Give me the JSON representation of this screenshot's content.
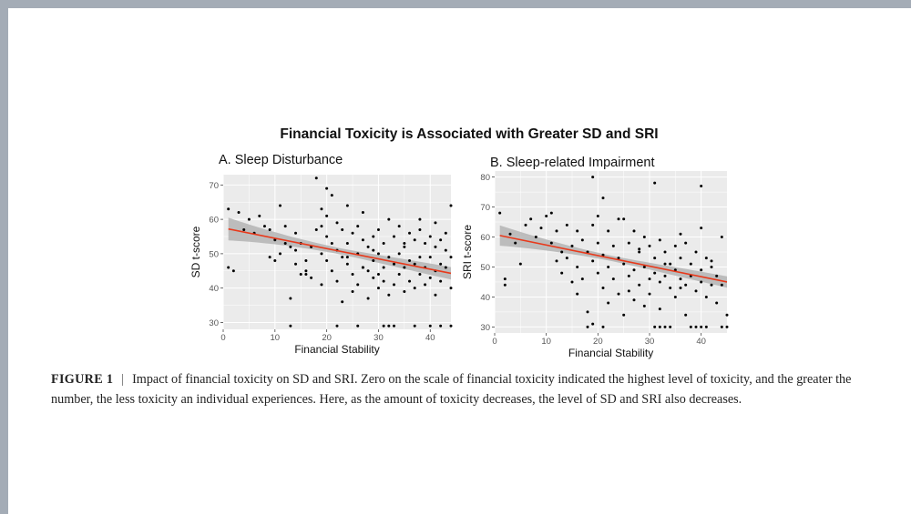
{
  "figure_title": "Financial Toxicity is Associated with Greater SD and SRI",
  "caption": {
    "label": "FIGURE 1",
    "separator": "|",
    "text": "Impact of financial toxicity on SD and SRI. Zero on the scale of financial toxicity indicated the highest level of toxicity, and the greater the number, the less toxicity an individual experiences. Here, as the amount of toxicity decreases, the level of SD and SRI also decreases."
  },
  "colors": {
    "panel_bg": "#ebebeb",
    "grid": "#ffffff",
    "point": "#000000",
    "fit_line": "#e8391b",
    "ci_band": "#b4b4b4",
    "frame": "#a4acb6"
  },
  "chart_data": [
    {
      "type": "scatter",
      "title": "A. Sleep Disturbance",
      "xlabel": "Financial Stability",
      "ylabel": "SD t-score",
      "xlim": [
        0,
        44
      ],
      "ylim": [
        28,
        73
      ],
      "xticks": [
        0,
        10,
        20,
        30,
        40
      ],
      "yticks": [
        30,
        40,
        50,
        60,
        70
      ],
      "grid": true,
      "fit": {
        "x": [
          1,
          44
        ],
        "y": [
          57.2,
          44.3
        ],
        "ci_halfwidth_ends": [
          3.3,
          1.8
        ],
        "ci_halfwidth_mid": 0.9
      },
      "points": [
        [
          1,
          46
        ],
        [
          1,
          63
        ],
        [
          2,
          45
        ],
        [
          3,
          62
        ],
        [
          4,
          57
        ],
        [
          5,
          60
        ],
        [
          6,
          56
        ],
        [
          7,
          61
        ],
        [
          8,
          58
        ],
        [
          9,
          57
        ],
        [
          9,
          49
        ],
        [
          10,
          54
        ],
        [
          10,
          48
        ],
        [
          11,
          50
        ],
        [
          11,
          64
        ],
        [
          12,
          53
        ],
        [
          12,
          58
        ],
        [
          13,
          52
        ],
        [
          13,
          37
        ],
        [
          13,
          29
        ],
        [
          14,
          47
        ],
        [
          14,
          51
        ],
        [
          14,
          56
        ],
        [
          15,
          53
        ],
        [
          15,
          44
        ],
        [
          16,
          45
        ],
        [
          16,
          48
        ],
        [
          17,
          52
        ],
        [
          17,
          43
        ],
        [
          18,
          57
        ],
        [
          18,
          72
        ],
        [
          19,
          58
        ],
        [
          19,
          63
        ],
        [
          19,
          50
        ],
        [
          20,
          55
        ],
        [
          20,
          61
        ],
        [
          20,
          48
        ],
        [
          21,
          67
        ],
        [
          21,
          53
        ],
        [
          21,
          45
        ],
        [
          22,
          59
        ],
        [
          22,
          51
        ],
        [
          22,
          42
        ],
        [
          23,
          57
        ],
        [
          23,
          49
        ],
        [
          23,
          36
        ],
        [
          24,
          64
        ],
        [
          24,
          53
        ],
        [
          24,
          47
        ],
        [
          25,
          56
        ],
        [
          25,
          44
        ],
        [
          25,
          39
        ],
        [
          26,
          58
        ],
        [
          26,
          50
        ],
        [
          26,
          41
        ],
        [
          27,
          62
        ],
        [
          27,
          54
        ],
        [
          27,
          46
        ],
        [
          28,
          52
        ],
        [
          28,
          45
        ],
        [
          28,
          37
        ],
        [
          29,
          55
        ],
        [
          29,
          48
        ],
        [
          29,
          43
        ],
        [
          30,
          57
        ],
        [
          30,
          50
        ],
        [
          30,
          40
        ],
        [
          31,
          53
        ],
        [
          31,
          46
        ],
        [
          31,
          42
        ],
        [
          32,
          60
        ],
        [
          32,
          49
        ],
        [
          32,
          38
        ],
        [
          33,
          55
        ],
        [
          33,
          47
        ],
        [
          33,
          41
        ],
        [
          34,
          58
        ],
        [
          34,
          50
        ],
        [
          34,
          44
        ],
        [
          35,
          52
        ],
        [
          35,
          46
        ],
        [
          35,
          39
        ],
        [
          36,
          56
        ],
        [
          36,
          48
        ],
        [
          36,
          42
        ],
        [
          37,
          54
        ],
        [
          37,
          47
        ],
        [
          37,
          40
        ],
        [
          38,
          57
        ],
        [
          38,
          49
        ],
        [
          38,
          44
        ],
        [
          39,
          53
        ],
        [
          39,
          46
        ],
        [
          39,
          41
        ],
        [
          40,
          55
        ],
        [
          40,
          49
        ],
        [
          40,
          43
        ],
        [
          41,
          52
        ],
        [
          41,
          45
        ],
        [
          41,
          38
        ],
        [
          42,
          54
        ],
        [
          42,
          47
        ],
        [
          42,
          42
        ],
        [
          43,
          51
        ],
        [
          43,
          46
        ],
        [
          44,
          64
        ],
        [
          44,
          49
        ],
        [
          44,
          40
        ],
        [
          22,
          29
        ],
        [
          26,
          29
        ],
        [
          31,
          29
        ],
        [
          32,
          29
        ],
        [
          33,
          29
        ],
        [
          37,
          29
        ],
        [
          40,
          29
        ],
        [
          42,
          29
        ],
        [
          44,
          29
        ],
        [
          16,
          44
        ],
        [
          19,
          41
        ],
        [
          24,
          49
        ],
        [
          29,
          51
        ],
        [
          35,
          53
        ],
        [
          38,
          60
        ],
        [
          41,
          59
        ],
        [
          43,
          56
        ],
        [
          20,
          69
        ],
        [
          27,
          46
        ],
        [
          30,
          44
        ]
      ]
    },
    {
      "type": "scatter",
      "title": "B. Sleep-related Impairment",
      "xlabel": "Financial Stability",
      "ylabel": "SRI t-score",
      "xlim": [
        0,
        45
      ],
      "ylim": [
        28,
        82
      ],
      "xticks": [
        0,
        10,
        20,
        30,
        40
      ],
      "yticks": [
        30,
        40,
        50,
        60,
        70,
        80
      ],
      "grid": true,
      "fit": {
        "x": [
          1,
          45
        ],
        "y": [
          60.5,
          45.0
        ],
        "ci_halfwidth_ends": [
          3.4,
          1.9
        ],
        "ci_halfwidth_mid": 0.9
      },
      "points": [
        [
          1,
          68
        ],
        [
          2,
          46
        ],
        [
          2,
          44
        ],
        [
          3,
          61
        ],
        [
          4,
          58
        ],
        [
          5,
          51
        ],
        [
          6,
          64
        ],
        [
          7,
          66
        ],
        [
          8,
          60
        ],
        [
          9,
          63
        ],
        [
          10,
          67
        ],
        [
          11,
          58
        ],
        [
          11,
          68
        ],
        [
          12,
          62
        ],
        [
          13,
          55
        ],
        [
          13,
          48
        ],
        [
          14,
          64
        ],
        [
          14,
          53
        ],
        [
          15,
          57
        ],
        [
          15,
          45
        ],
        [
          16,
          50
        ],
        [
          16,
          41
        ],
        [
          17,
          59
        ],
        [
          17,
          46
        ],
        [
          18,
          55
        ],
        [
          18,
          35
        ],
        [
          19,
          64
        ],
        [
          19,
          52
        ],
        [
          19,
          31
        ],
        [
          20,
          67
        ],
        [
          20,
          58
        ],
        [
          20,
          48
        ],
        [
          21,
          54
        ],
        [
          21,
          43
        ],
        [
          22,
          62
        ],
        [
          22,
          50
        ],
        [
          22,
          38
        ],
        [
          23,
          57
        ],
        [
          23,
          46
        ],
        [
          24,
          53
        ],
        [
          24,
          41
        ],
        [
          25,
          66
        ],
        [
          25,
          51
        ],
        [
          25,
          34
        ],
        [
          26,
          58
        ],
        [
          26,
          47
        ],
        [
          27,
          62
        ],
        [
          27,
          49
        ],
        [
          27,
          39
        ],
        [
          28,
          55
        ],
        [
          28,
          44
        ],
        [
          29,
          60
        ],
        [
          29,
          50
        ],
        [
          29,
          37
        ],
        [
          30,
          57
        ],
        [
          30,
          46
        ],
        [
          30,
          41
        ],
        [
          31,
          53
        ],
        [
          31,
          48
        ],
        [
          31,
          78
        ],
        [
          32,
          59
        ],
        [
          32,
          45
        ],
        [
          32,
          36
        ],
        [
          33,
          55
        ],
        [
          33,
          47
        ],
        [
          34,
          51
        ],
        [
          34,
          43
        ],
        [
          35,
          57
        ],
        [
          35,
          49
        ],
        [
          35,
          40
        ],
        [
          36,
          53
        ],
        [
          36,
          46
        ],
        [
          37,
          58
        ],
        [
          37,
          44
        ],
        [
          37,
          34
        ],
        [
          38,
          51
        ],
        [
          38,
          47
        ],
        [
          39,
          55
        ],
        [
          39,
          42
        ],
        [
          40,
          77
        ],
        [
          40,
          49
        ],
        [
          40,
          45
        ],
        [
          41,
          53
        ],
        [
          41,
          40
        ],
        [
          42,
          50
        ],
        [
          42,
          44
        ],
        [
          43,
          47
        ],
        [
          43,
          38
        ],
        [
          44,
          60
        ],
        [
          44,
          44
        ],
        [
          45,
          34
        ],
        [
          19,
          80
        ],
        [
          21,
          73
        ],
        [
          24,
          66
        ],
        [
          36,
          61
        ],
        [
          40,
          63
        ],
        [
          18,
          30
        ],
        [
          21,
          30
        ],
        [
          31,
          30
        ],
        [
          32,
          30
        ],
        [
          33,
          30
        ],
        [
          34,
          30
        ],
        [
          38,
          30
        ],
        [
          39,
          30
        ],
        [
          40,
          30
        ],
        [
          41,
          30
        ],
        [
          44,
          30
        ],
        [
          45,
          30
        ],
        [
          12,
          52
        ],
        [
          16,
          62
        ],
        [
          26,
          42
        ],
        [
          28,
          56
        ],
        [
          33,
          51
        ],
        [
          36,
          43
        ],
        [
          42,
          52
        ]
      ]
    }
  ]
}
